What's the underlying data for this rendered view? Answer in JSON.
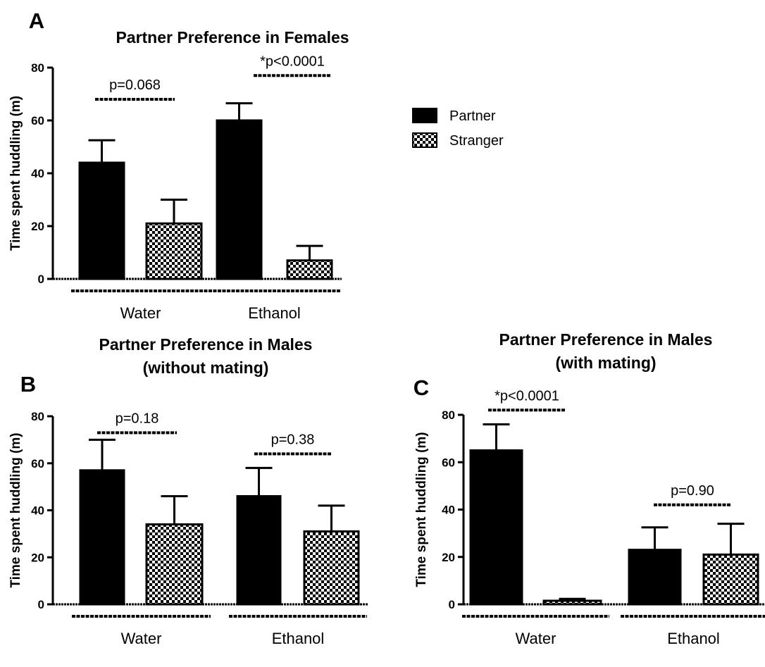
{
  "chart_data": [
    {
      "type": "bar",
      "panel_letter": "A",
      "title": [
        "Partner Preference in Females"
      ],
      "ylabel": "Time spent huddling (m)",
      "ylim": [
        0,
        80
      ],
      "yticks": [
        0,
        20,
        40,
        60,
        80
      ],
      "categories": [
        "Water",
        "Ethanol"
      ],
      "series": [
        {
          "name": "Partner",
          "values": [
            44,
            60
          ],
          "errors": [
            8.5,
            6.5
          ]
        },
        {
          "name": "Stranger",
          "values": [
            21,
            7
          ],
          "errors": [
            9,
            5.5
          ]
        }
      ],
      "annotations": [
        "p=0.068",
        "*p<0.0001"
      ],
      "annotation_ypos": [
        68,
        77
      ],
      "legend": {
        "placement": "right",
        "entries": [
          "Partner",
          "Stranger"
        ]
      }
    },
    {
      "type": "bar",
      "panel_letter": "B",
      "title": [
        "Partner Preference in Males",
        "(without mating)"
      ],
      "ylabel": "Time spent huddling (m)",
      "ylim": [
        0,
        80
      ],
      "yticks": [
        0,
        20,
        40,
        60,
        80
      ],
      "categories": [
        "Water",
        "Ethanol"
      ],
      "series": [
        {
          "name": "Partner",
          "values": [
            57,
            46
          ],
          "errors": [
            13,
            12
          ]
        },
        {
          "name": "Stranger",
          "values": [
            34,
            31
          ],
          "errors": [
            12,
            11
          ]
        }
      ],
      "annotations": [
        "p=0.18",
        "p=0.38"
      ],
      "annotation_ypos": [
        73,
        64
      ]
    },
    {
      "type": "bar",
      "panel_letter": "C",
      "title": [
        "Partner Preference in Males",
        "(with mating)"
      ],
      "ylabel": "Time spent huddling (m)",
      "ylim": [
        0,
        80
      ],
      "yticks": [
        0,
        20,
        40,
        60,
        80
      ],
      "categories": [
        "Water",
        "Ethanol"
      ],
      "series": [
        {
          "name": "Partner",
          "values": [
            65,
            23
          ],
          "errors": [
            11,
            9.5
          ]
        },
        {
          "name": "Stranger",
          "values": [
            1.5,
            21
          ],
          "errors": [
            0.8,
            13
          ]
        }
      ],
      "annotations": [
        "*p<0.0001",
        "p=0.90"
      ],
      "annotation_ypos": [
        82,
        42
      ]
    }
  ]
}
